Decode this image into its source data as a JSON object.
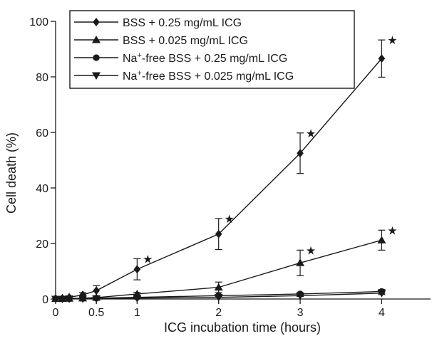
{
  "chart_data": {
    "type": "line",
    "xlabel": "ICG incubation time (hours)",
    "ylabel": "Cell death (%)",
    "xlim": [
      0,
      4.6
    ],
    "ylim": [
      0,
      100
    ],
    "x_ticks": [
      0,
      0.5,
      1,
      2,
      3,
      4
    ],
    "x_tick_labels": [
      "0",
      "0.5",
      "1",
      "2",
      "3",
      "4"
    ],
    "y_ticks": [
      0,
      20,
      40,
      60,
      80,
      100
    ],
    "y_tick_labels": [
      "0",
      "20",
      "40",
      "60",
      "80",
      "100"
    ],
    "legend_position": "top-left",
    "x": [
      0,
      0.083,
      0.167,
      0.333,
      0.5,
      1,
      2,
      3,
      4
    ],
    "series": [
      {
        "name": "BSS + 0.25 mg/mL ICG",
        "marker": "diamond",
        "values": [
          0.2,
          0.3,
          0.6,
          1.5,
          3.0,
          10.7,
          23.4,
          52.5,
          86.6
        ],
        "error": [
          0.2,
          0.3,
          0.5,
          0.8,
          1.8,
          3.8,
          5.6,
          7.3,
          6.7
        ],
        "significance": [
          false,
          false,
          false,
          false,
          false,
          true,
          true,
          true,
          true
        ]
      },
      {
        "name": "BSS + 0.025 mg/mL ICG",
        "marker": "triangle-up",
        "values": [
          0.1,
          0.1,
          0.2,
          0.3,
          0.5,
          1.8,
          4.2,
          13.0,
          21.2
        ],
        "error": [
          0.1,
          0.1,
          0.1,
          0.2,
          0.3,
          0.6,
          1.9,
          4.6,
          3.6
        ],
        "significance": [
          false,
          false,
          false,
          false,
          false,
          false,
          false,
          true,
          true
        ]
      },
      {
        "name": "Na+-free BSS + 0.25 mg/mL ICG",
        "marker": "circle",
        "values": [
          0.1,
          0.1,
          0.1,
          0.2,
          0.3,
          0.6,
          1.2,
          1.8,
          2.7
        ],
        "error": [
          0.1,
          0.1,
          0.1,
          0.1,
          0.1,
          0.2,
          0.3,
          0.4,
          0.7
        ],
        "significance": [
          false,
          false,
          false,
          false,
          false,
          false,
          false,
          false,
          false
        ]
      },
      {
        "name": "Na+-free BSS + 0.025 mg/mL ICG",
        "marker": "triangle-down",
        "values": [
          0.0,
          0.0,
          0.1,
          0.1,
          0.1,
          0.3,
          0.6,
          1.2,
          2.1
        ],
        "error": [
          0.1,
          0.1,
          0.1,
          0.1,
          0.1,
          0.1,
          0.2,
          0.3,
          0.5
        ],
        "significance": [
          false,
          false,
          false,
          false,
          false,
          false,
          false,
          false,
          false
        ]
      }
    ],
    "significance_marker": "★"
  }
}
